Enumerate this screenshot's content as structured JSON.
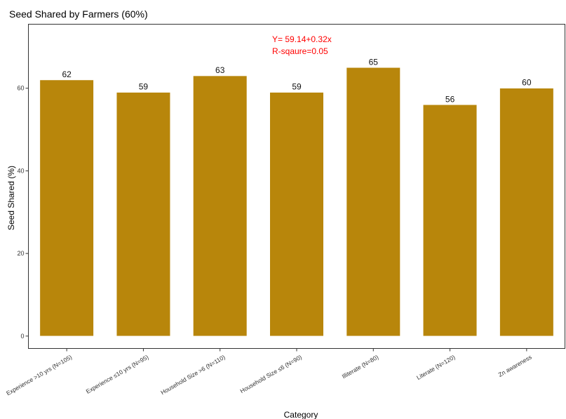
{
  "chart_data": {
    "type": "bar",
    "title": "Seed Shared by Farmers (60%)",
    "xlabel": "Category",
    "ylabel": "Seed Shared (%)",
    "categories": [
      "Experience >10 yrs (N=105)",
      "Experience ≤10 yrs (N=95)",
      "Household Size >6 (N=110)",
      "Household Size ≤6 (N=90)",
      "Illiterate (N=80)",
      "Literate (N=120)",
      "Zn awareness"
    ],
    "values": [
      62,
      59,
      63,
      59,
      65,
      56,
      60
    ],
    "data_labels": [
      "62",
      "59",
      "63",
      "59",
      "65",
      "56",
      "60"
    ],
    "yticks": [
      "0",
      "20",
      "40",
      "60"
    ],
    "ytick_values": [
      0,
      20,
      40,
      60
    ],
    "ylim": [
      -3,
      75.5
    ],
    "grid": false,
    "legend": "none",
    "bar_color": "#B8860B",
    "annotations": [
      {
        "text": "Y= 59.14+0.32x",
        "color": "#FF0000"
      },
      {
        "text": "R-sqaure=0.05",
        "color": "#FF0000"
      }
    ]
  }
}
